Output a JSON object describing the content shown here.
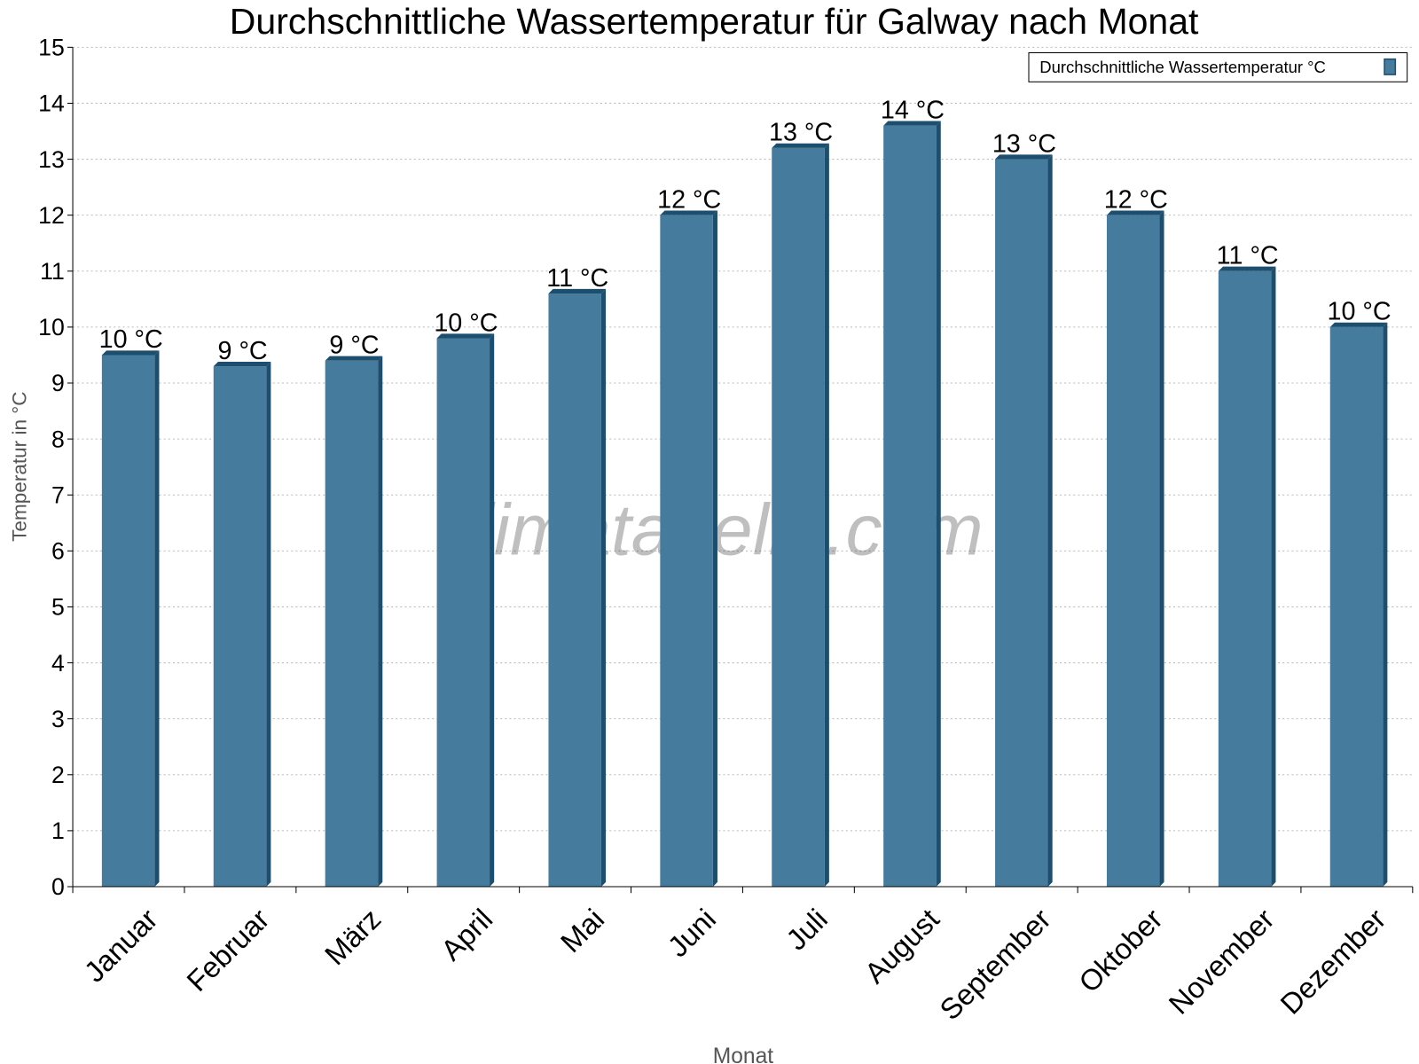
{
  "chart_data": {
    "type": "bar",
    "title": "Durchschnittliche Wassertemperatur für Galway nach Monat",
    "xlabel": "Monat",
    "ylabel": "Temperatur in °C",
    "ylim": [
      0,
      15
    ],
    "yticks": [
      "0",
      "1",
      "2",
      "3",
      "4",
      "5",
      "6",
      "7",
      "8",
      "9",
      "10",
      "11",
      "12",
      "13",
      "14",
      "15"
    ],
    "grid": true,
    "legend_position": "top-right",
    "categories": [
      "Januar",
      "Februar",
      "März",
      "April",
      "Mai",
      "Juni",
      "Juli",
      "August",
      "September",
      "Oktober",
      "November",
      "Dezember"
    ],
    "series": [
      {
        "name": "Durchschnittliche Wassertemperatur °C",
        "color": "#457b9d",
        "edge_color": "#1d4e6e",
        "values": [
          9.5,
          9.3,
          9.4,
          9.8,
          10.6,
          12.0,
          13.2,
          13.6,
          13.0,
          12.0,
          11.0,
          10.0
        ],
        "data_labels": [
          "10 °C",
          "9 °C",
          "9 °C",
          "10 °C",
          "11 °C",
          "12 °C",
          "13 °C",
          "14 °C",
          "13 °C",
          "12 °C",
          "11 °C",
          "10 °C"
        ]
      }
    ],
    "watermark": "klimatabelle.com"
  }
}
